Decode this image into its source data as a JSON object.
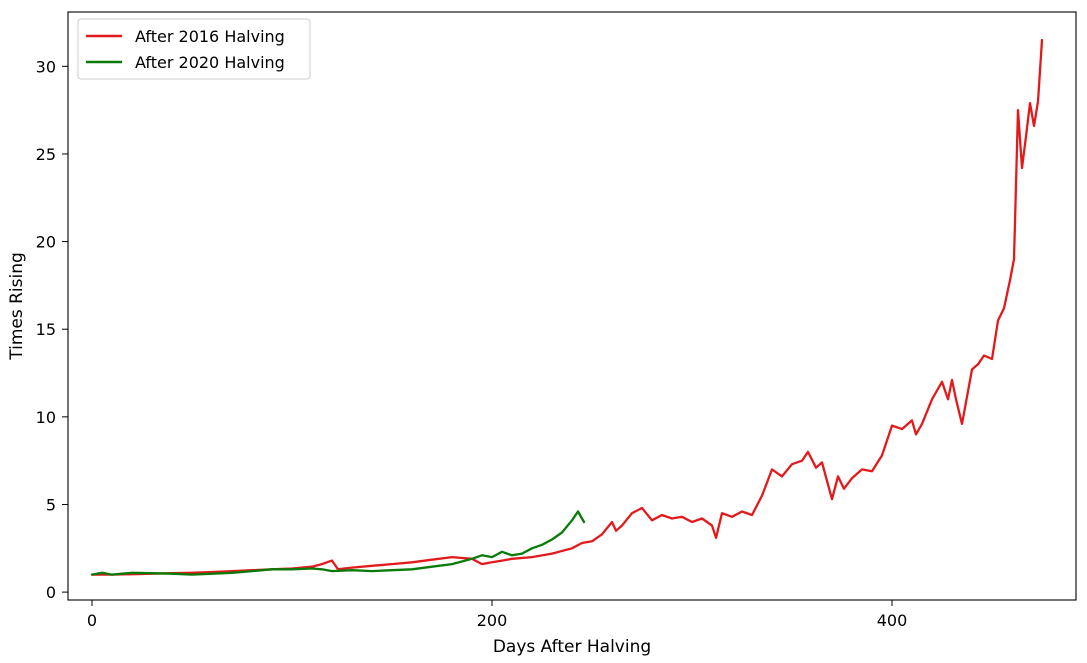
{
  "chart_data": {
    "type": "line",
    "title": "",
    "xlabel": "Days After Halving",
    "ylabel": "Times Rising",
    "xlim": [
      -12,
      492
    ],
    "ylim": [
      -0.45,
      33.1
    ],
    "xticks": [
      0,
      200,
      400
    ],
    "yticks": [
      0,
      5,
      10,
      15,
      20,
      25,
      30
    ],
    "grid": false,
    "legend_position": "top-left",
    "series": [
      {
        "name": "After 2016 Halving",
        "color": "#e31a1c",
        "x": [
          0,
          10,
          20,
          30,
          40,
          50,
          60,
          70,
          80,
          90,
          100,
          110,
          115,
          120,
          123,
          126,
          130,
          140,
          150,
          160,
          170,
          180,
          190,
          195,
          200,
          205,
          210,
          220,
          230,
          240,
          245,
          250,
          255,
          260,
          262,
          265,
          270,
          275,
          280,
          285,
          290,
          295,
          300,
          305,
          310,
          312,
          315,
          320,
          325,
          330,
          335,
          340,
          345,
          350,
          355,
          358,
          362,
          365,
          370,
          373,
          376,
          380,
          385,
          390,
          395,
          400,
          405,
          410,
          412,
          415,
          420,
          425,
          428,
          430,
          432,
          435,
          440,
          443,
          446,
          450,
          453,
          456,
          459,
          461,
          463,
          465,
          467,
          469,
          471,
          473,
          475
        ],
        "values": [
          1.0,
          1.0,
          1.02,
          1.05,
          1.08,
          1.1,
          1.15,
          1.2,
          1.25,
          1.3,
          1.35,
          1.45,
          1.6,
          1.8,
          1.3,
          1.35,
          1.4,
          1.5,
          1.6,
          1.7,
          1.85,
          2.0,
          1.9,
          1.6,
          1.7,
          1.8,
          1.9,
          2.0,
          2.2,
          2.5,
          2.8,
          2.9,
          3.3,
          4.0,
          3.5,
          3.8,
          4.5,
          4.8,
          4.1,
          4.4,
          4.2,
          4.3,
          4.0,
          4.2,
          3.8,
          3.1,
          4.5,
          4.3,
          4.6,
          4.4,
          5.5,
          7.0,
          6.6,
          7.3,
          7.5,
          8.0,
          7.1,
          7.4,
          5.3,
          6.6,
          5.9,
          6.5,
          7.0,
          6.9,
          7.8,
          9.5,
          9.3,
          9.8,
          9.0,
          9.6,
          11.0,
          12.0,
          11.0,
          12.1,
          11.0,
          9.6,
          12.7,
          13.0,
          13.5,
          13.3,
          15.5,
          16.2,
          17.8,
          19.0,
          27.5,
          24.2,
          26.0,
          27.9,
          26.6,
          28.0,
          31.5
        ]
      },
      {
        "name": "After 2020 Halving",
        "color": "#0a7a0a",
        "x": [
          0,
          5,
          10,
          15,
          20,
          30,
          40,
          50,
          60,
          70,
          80,
          90,
          100,
          110,
          115,
          120,
          130,
          140,
          150,
          160,
          170,
          180,
          190,
          195,
          200,
          205,
          210,
          215,
          220,
          225,
          230,
          235,
          240,
          243,
          246
        ],
        "values": [
          1.0,
          1.1,
          1.0,
          1.05,
          1.1,
          1.08,
          1.05,
          1.0,
          1.05,
          1.1,
          1.2,
          1.3,
          1.3,
          1.35,
          1.3,
          1.2,
          1.25,
          1.2,
          1.25,
          1.3,
          1.45,
          1.6,
          1.9,
          2.1,
          2.0,
          2.3,
          2.1,
          2.2,
          2.5,
          2.7,
          3.0,
          3.4,
          4.1,
          4.6,
          4.0
        ]
      }
    ]
  }
}
